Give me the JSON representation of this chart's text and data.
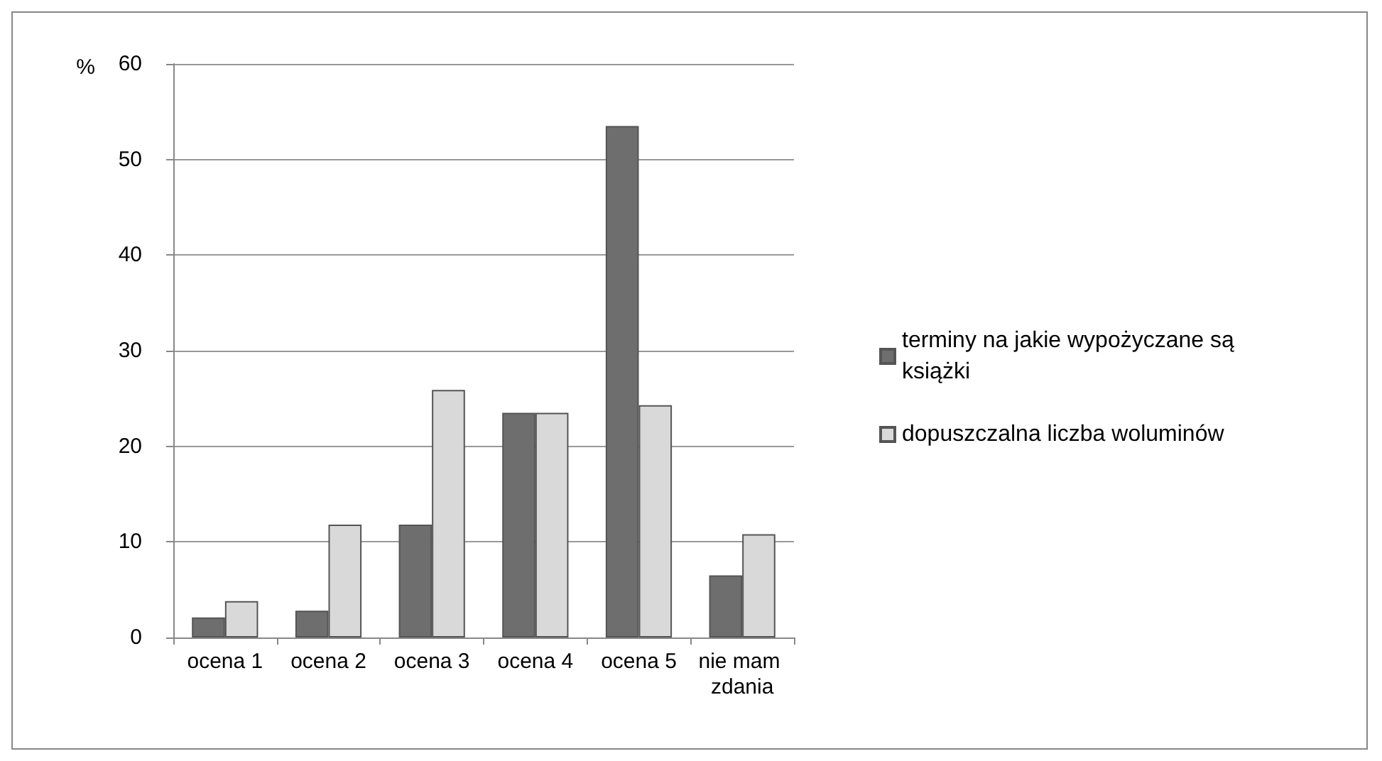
{
  "chart_data": {
    "type": "bar",
    "ylabel": "%",
    "categories": [
      "ocena 1",
      "ocena 2",
      "ocena 3",
      "ocena 4",
      "ocena 5",
      "nie mam zdania"
    ],
    "series": [
      {
        "name": "terminy na jakie wypożyczane są książki",
        "color": "#6e6e6e",
        "values": [
          2.1,
          2.8,
          11.8,
          23.5,
          53.5,
          6.5
        ]
      },
      {
        "name": "dopuszczalna liczba woluminów",
        "color": "#d9d9d9",
        "values": [
          3.8,
          11.8,
          25.9,
          23.5,
          24.3,
          10.8
        ]
      }
    ],
    "ylim": [
      0,
      60
    ],
    "yticks": [
      0,
      10,
      20,
      30,
      40,
      50,
      60
    ],
    "grid": "y",
    "legend": "right"
  }
}
